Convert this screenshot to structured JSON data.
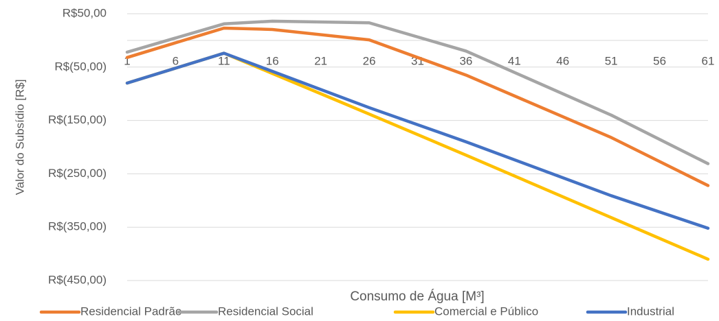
{
  "chart_data": {
    "type": "line",
    "x_label": "Consumo de Água [M³]",
    "y_label": "Valor do Subsídio [R$]",
    "x": [
      1,
      11,
      16,
      26,
      36,
      51,
      61
    ],
    "xlim": [
      1,
      61
    ],
    "xticks": [
      1,
      6,
      11,
      16,
      21,
      26,
      31,
      36,
      41,
      46,
      51,
      56,
      61
    ],
    "ylim": [
      -450,
      50
    ],
    "yticks": [
      {
        "value": 50,
        "label": "R$50,00"
      },
      {
        "value": -50,
        "label": "R$(50,00)"
      },
      {
        "value": -150,
        "label": "R$(150,00)"
      },
      {
        "value": -250,
        "label": "R$(250,00)"
      },
      {
        "value": -350,
        "label": "R$(350,00)"
      },
      {
        "value": -450,
        "label": "R$(450,00)"
      }
    ],
    "grid": true,
    "legend": "bottom",
    "series": [
      {
        "name": "Residencial Padrão",
        "color": "#ED7D31",
        "values": [
          -32,
          23,
          20.5,
          1,
          -65,
          -182,
          -272
        ]
      },
      {
        "name": "Residencial Social",
        "color": "#A5A5A5",
        "values": [
          -22,
          31,
          36,
          33,
          -20,
          -140,
          -231
        ]
      },
      {
        "name": "Comercial e Público",
        "color": "#FFC000",
        "values": [
          -80,
          -24,
          -62,
          -138,
          -215,
          -332,
          -410
        ]
      },
      {
        "name": "Industrial",
        "color": "#4472C4",
        "values": [
          -80,
          -24,
          -58,
          -126,
          -190,
          -291,
          -352
        ]
      }
    ]
  }
}
